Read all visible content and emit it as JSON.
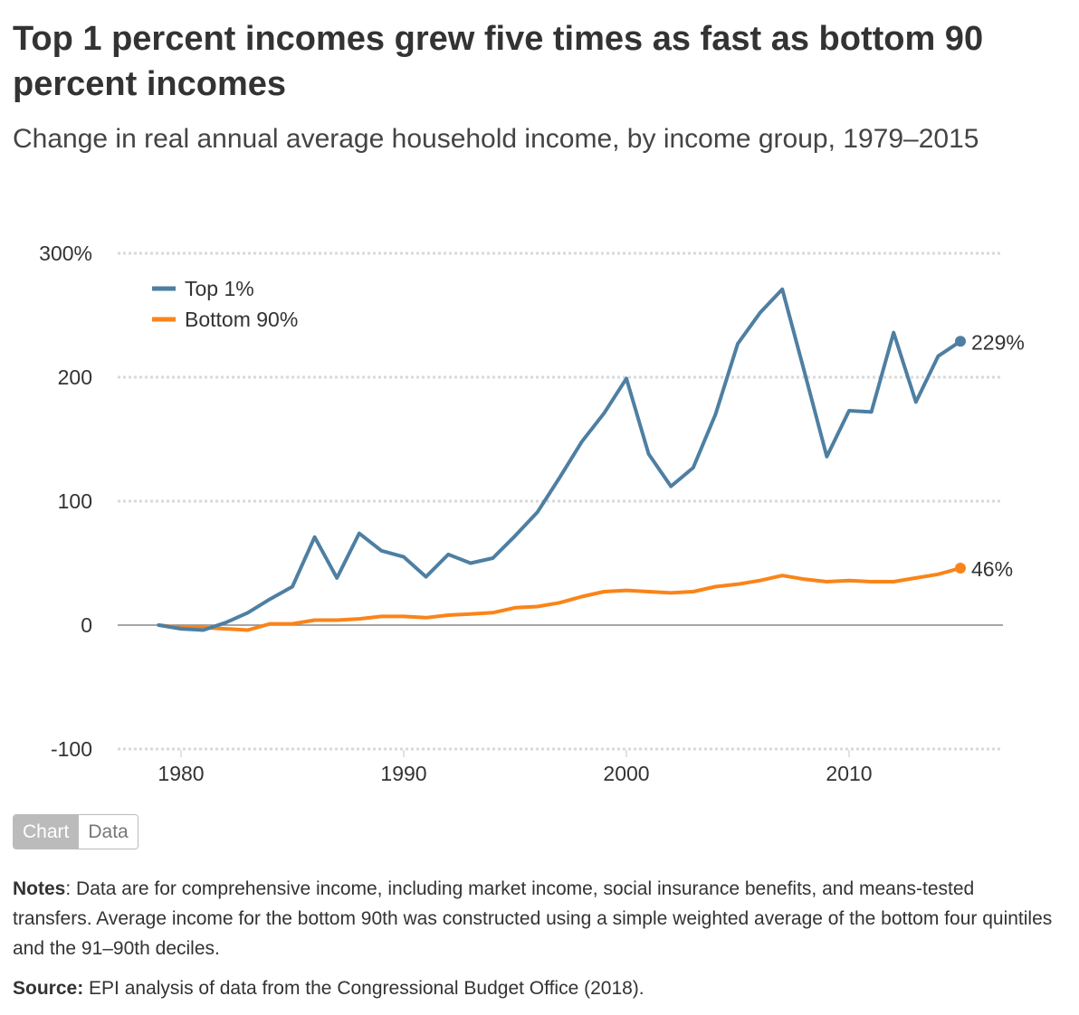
{
  "title": "Top 1 percent incomes grew five times as fast as bottom 90 percent incomes",
  "subtitle": "Change in real annual average household income, by income group, 1979–2015",
  "toggle": {
    "chart_label": "Chart",
    "data_label": "Data"
  },
  "notes": {
    "label": "Notes",
    "text": ": Data are for comprehensive income, including market income, social insurance benefits, and means-tested transfers. Average income for the bottom 90th was constructed using a simple weighted average of the bottom four quintiles and the 91–90th deciles."
  },
  "source": {
    "label": "Source:",
    "text": " EPI analysis of data from the Congressional Budget Office (2018)."
  },
  "colors": {
    "top1": "#4e7fa2",
    "bottom90": "#fa8419",
    "grid": "#d9d9d9",
    "zero": "#888888"
  },
  "chart_data": {
    "type": "line",
    "title": "Top 1 percent incomes grew five times as fast as bottom 90 percent incomes",
    "subtitle": "Change in real annual average household income, by income group, 1979–2015",
    "xlabel": "",
    "ylabel": "",
    "xlim": [
      1977,
      2017
    ],
    "ylim": [
      -100,
      300
    ],
    "x_ticks": [
      1980,
      1990,
      2000,
      2010
    ],
    "y_ticks": [
      -100,
      0,
      100,
      200,
      300
    ],
    "y_tick_labels": [
      "-100",
      "0",
      "100",
      "200",
      "300%"
    ],
    "grid": true,
    "legend": "top-left",
    "x": [
      1979,
      1980,
      1981,
      1982,
      1983,
      1984,
      1985,
      1986,
      1987,
      1988,
      1989,
      1990,
      1991,
      1992,
      1993,
      1994,
      1995,
      1996,
      1997,
      1998,
      1999,
      2000,
      2001,
      2002,
      2003,
      2004,
      2005,
      2006,
      2007,
      2008,
      2009,
      2010,
      2011,
      2012,
      2013,
      2014,
      2015
    ],
    "series": [
      {
        "name": "Top 1%",
        "color": "#4e7fa2",
        "end_label": "229%",
        "values": [
          0,
          -3,
          -4,
          2,
          10,
          21,
          31,
          71,
          38,
          74,
          60,
          55,
          39,
          57,
          50,
          54,
          72,
          91,
          119,
          148,
          171,
          199,
          138,
          112,
          127,
          170,
          227,
          252,
          271,
          204,
          136,
          173,
          172,
          236,
          180,
          217,
          229
        ]
      },
      {
        "name": "Bottom 90%",
        "color": "#fa8419",
        "end_label": "46%",
        "values": [
          0,
          -2,
          -2,
          -3,
          -4,
          1,
          1,
          4,
          4,
          5,
          7,
          7,
          6,
          8,
          9,
          10,
          14,
          15,
          18,
          23,
          27,
          28,
          27,
          26,
          27,
          31,
          33,
          36,
          40,
          37,
          35,
          36,
          35,
          35,
          38,
          41,
          46
        ]
      }
    ]
  }
}
